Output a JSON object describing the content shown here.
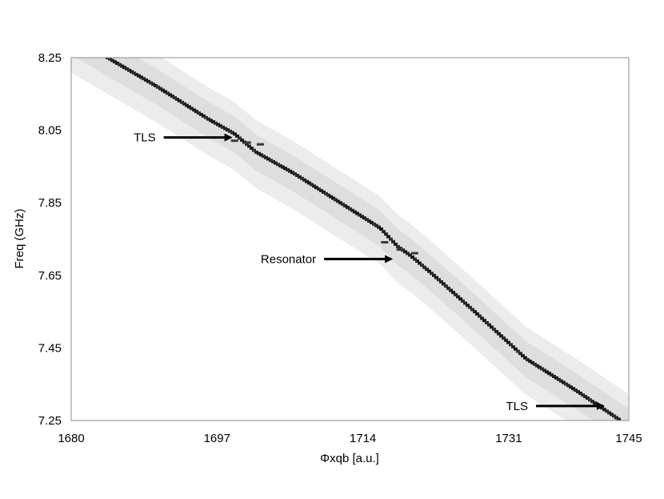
{
  "chart_data": {
    "type": "heatmap",
    "title": "",
    "xlabel": "Φxqb [a.u.]",
    "ylabel": "Freq (GHz)",
    "xlim": [
      1680,
      1745
    ],
    "ylim": [
      7.25,
      8.25
    ],
    "x_ticks": [
      "1680",
      "1697",
      "1714",
      "1731",
      "1745"
    ],
    "y_ticks": [
      "7.25",
      "7.45",
      "7.65",
      "7.85",
      "8.05",
      "8.25"
    ],
    "grid": false,
    "colormap": "grayscale",
    "main_trace": {
      "name": "",
      "x": [
        1684.2,
        1690,
        1696,
        1699,
        1701.5,
        1706,
        1712,
        1716,
        1718,
        1719.5,
        1722,
        1727,
        1733,
        1739,
        1744
      ],
      "y": [
        8.25,
        8.17,
        8.08,
        8.04,
        7.99,
        7.93,
        7.84,
        7.78,
        7.73,
        7.705,
        7.655,
        7.55,
        7.42,
        7.33,
        7.25
      ]
    },
    "anticrossings": [
      {
        "x": [
          1699,
          1700.5,
          1702
        ],
        "y": [
          8.02,
          8.015,
          8.01
        ]
      },
      {
        "x": [
          1716.5,
          1718.3,
          1720
        ],
        "y": [
          7.74,
          7.72,
          7.71
        ]
      }
    ],
    "annotations": [
      {
        "text": "TLS",
        "x": 1698.8,
        "y": 8.03
      },
      {
        "text": "Resonator",
        "x": 1717.5,
        "y": 7.695
      },
      {
        "text": "TLS",
        "x": 1742.2,
        "y": 7.29
      }
    ]
  }
}
